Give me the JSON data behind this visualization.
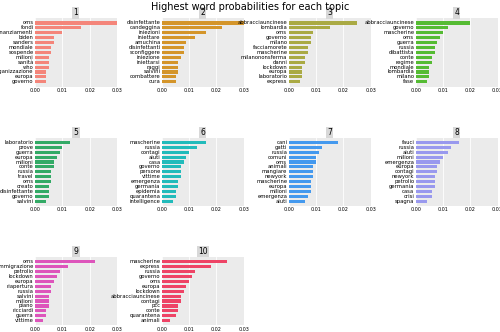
{
  "title": "Highest word probabilities for each topic",
  "topics": {
    "1": {
      "color": "#F4857A",
      "words": [
        "oms",
        "fondi",
        "finanziamenti",
        "biden",
        "sanders",
        "mondiale",
        "sospende",
        "milioni",
        "sanità",
        "who",
        "organizzazione",
        "europa",
        "governo"
      ],
      "probs": [
        0.03,
        0.017,
        0.01,
        0.007,
        0.007,
        0.006,
        0.006,
        0.005,
        0.005,
        0.005,
        0.004,
        0.004,
        0.004
      ]
    },
    "2": {
      "color": "#D4952A",
      "words": [
        "disinfettante",
        "candeggina",
        "iniezioni",
        "iniettare",
        "amuchina",
        "disinfettanti",
        "sconfiggere",
        "iniezione",
        "iniettarsi",
        "raggi",
        "salvini",
        "combattere",
        "cura"
      ],
      "probs": [
        0.03,
        0.022,
        0.016,
        0.012,
        0.009,
        0.008,
        0.008,
        0.007,
        0.006,
        0.006,
        0.006,
        0.005,
        0.005
      ]
    },
    "3": {
      "color": "#AAAA44",
      "words": [
        "abbracciauncinese",
        "lombardia",
        "oms",
        "governo",
        "milano",
        "facciamorete",
        "mascherine",
        "milanononsferma",
        "danni",
        "lockdown",
        "europa",
        "laboratorio",
        "express"
      ],
      "probs": [
        0.025,
        0.015,
        0.009,
        0.008,
        0.008,
        0.007,
        0.007,
        0.006,
        0.006,
        0.005,
        0.005,
        0.005,
        0.004
      ]
    },
    "4": {
      "color": "#55BB33",
      "words": [
        "abbracciauncinese",
        "governo",
        "mascherine",
        "oms",
        "guerra",
        "russia",
        "dibattista",
        "conte",
        "regime",
        "mondiale",
        "lombardia",
        "milano",
        "fase"
      ],
      "probs": [
        0.02,
        0.012,
        0.01,
        0.009,
        0.008,
        0.007,
        0.007,
        0.006,
        0.006,
        0.005,
        0.005,
        0.005,
        0.004
      ]
    },
    "5": {
      "color": "#33AA66",
      "words": [
        "laboratorio",
        "prove",
        "guerra",
        "europa",
        "milioni",
        "conte",
        "russia",
        "travel",
        "oms",
        "creato",
        "disinfettante",
        "governo",
        "salvini"
      ],
      "probs": [
        0.013,
        0.01,
        0.009,
        0.008,
        0.007,
        0.007,
        0.006,
        0.006,
        0.006,
        0.005,
        0.005,
        0.005,
        0.004
      ]
    },
    "6": {
      "color": "#22BBBB",
      "words": [
        "mascherine",
        "russia",
        "contagi",
        "aiuti",
        "casa",
        "governo",
        "persone",
        "vittime",
        "emergenza",
        "germania",
        "epidemia",
        "quarantena",
        "intelligence"
      ],
      "probs": [
        0.016,
        0.013,
        0.01,
        0.009,
        0.008,
        0.007,
        0.007,
        0.007,
        0.006,
        0.006,
        0.005,
        0.005,
        0.004
      ]
    },
    "7": {
      "color": "#4499EE",
      "words": [
        "cani",
        "gatti",
        "russia",
        "comuni",
        "oms",
        "animali",
        "mangiare",
        "newyork",
        "mascherine",
        "europa",
        "milioni",
        "emergenza",
        "aiuti"
      ],
      "probs": [
        0.018,
        0.012,
        0.011,
        0.01,
        0.01,
        0.009,
        0.009,
        0.009,
        0.008,
        0.008,
        0.008,
        0.007,
        0.006
      ]
    },
    "8": {
      "color": "#9999EE",
      "words": [
        "fauci",
        "russia",
        "aiuti",
        "milioni",
        "emergenza",
        "europa",
        "contagi",
        "newyork",
        "petrolio",
        "germania",
        "casa",
        "crisi",
        "spagna"
      ],
      "probs": [
        0.016,
        0.013,
        0.012,
        0.01,
        0.009,
        0.008,
        0.008,
        0.007,
        0.007,
        0.007,
        0.006,
        0.006,
        0.004
      ]
    },
    "9": {
      "color": "#DD55BB",
      "words": [
        "oms",
        "immigrazione",
        "petrolio",
        "lockdown",
        "europa",
        "riapertura",
        "russia",
        "salvini",
        "milioni",
        "piano",
        "ricciardi",
        "guerra",
        "vittime"
      ],
      "probs": [
        0.022,
        0.012,
        0.009,
        0.008,
        0.007,
        0.006,
        0.006,
        0.005,
        0.005,
        0.005,
        0.004,
        0.004,
        0.003
      ]
    },
    "10": {
      "color": "#EE4466",
      "words": [
        "mascherine",
        "express",
        "russia",
        "governo",
        "oms",
        "europa",
        "lockdown",
        "abbracciauncinese",
        "contagi",
        "pcc",
        "conte",
        "quarantena",
        "animali"
      ],
      "probs": [
        0.024,
        0.018,
        0.012,
        0.011,
        0.01,
        0.009,
        0.008,
        0.007,
        0.007,
        0.006,
        0.006,
        0.005,
        0.003
      ]
    }
  },
  "xlim": [
    0,
    0.03
  ],
  "xticks": [
    0.0,
    0.01,
    0.02,
    0.03
  ],
  "panel_bg": "#EBEBEB",
  "grid_color": "white",
  "title_fontsize": 7,
  "label_fontsize": 3.8,
  "tick_fontsize": 3.5
}
